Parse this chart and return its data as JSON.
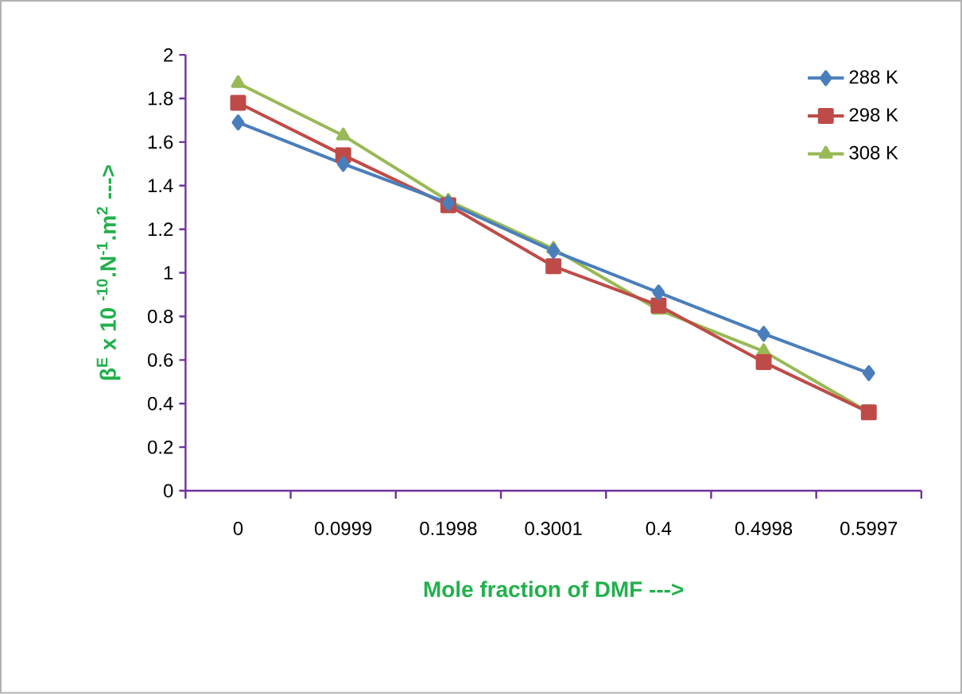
{
  "chart_data": {
    "type": "line",
    "xlabel": "**Mole fraction of DMF --->**",
    "ylabel": "**β$^{E}$ x 10 $^{-10}$.N$^{-1}$.m$^{2}$ --->**",
    "categories": [
      "0",
      "0.0999",
      "0.1998",
      "0.3001",
      "0.4",
      "0.4998",
      "0.5997"
    ],
    "ylim": [
      0,
      2
    ],
    "yticks": [
      0,
      0.2,
      0.4,
      0.6,
      0.8,
      1,
      1.2,
      1.4,
      1.6,
      1.8,
      2
    ],
    "legend": "top right",
    "grid": false,
    "series": [
      {
        "name": "288 K",
        "color": "#4a7ebb",
        "marker": "diamond",
        "values": [
          1.69,
          1.5,
          1.32,
          1.1,
          0.91,
          0.72,
          0.54
        ]
      },
      {
        "name": "298 K",
        "color": "#be4b48",
        "marker": "square",
        "values": [
          1.78,
          1.54,
          1.31,
          1.03,
          0.85,
          0.59,
          0.36
        ]
      },
      {
        "name": "308 K",
        "color": "#98b954",
        "marker": "triangle",
        "values": [
          1.87,
          1.63,
          1.33,
          1.11,
          0.83,
          0.64,
          0.36
        ]
      }
    ]
  }
}
